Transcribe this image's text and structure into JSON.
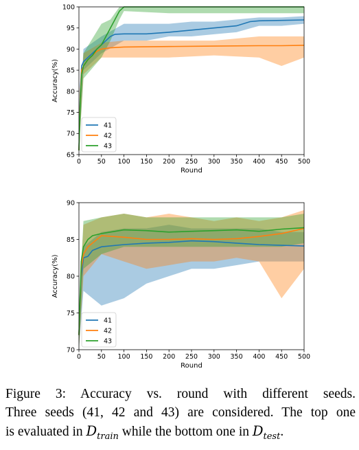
{
  "chart_data": [
    {
      "type": "line",
      "xlabel": "Round",
      "ylabel": "Accuracy(%)",
      "xlim": [
        0,
        500
      ],
      "ylim": [
        65,
        100
      ],
      "x_ticks": [
        "0",
        "50",
        "100",
        "150",
        "200",
        "250",
        "300",
        "350",
        "400",
        "450",
        "500"
      ],
      "y_ticks": [
        "65",
        "70",
        "75",
        "80",
        "85",
        "90",
        "95",
        "100"
      ],
      "legend": "bottom-left",
      "grid": false,
      "series": [
        {
          "name": "41",
          "color": "#1f77b4",
          "points": [
            [
              0,
              66
            ],
            [
              3,
              80
            ],
            [
              6,
              86
            ],
            [
              10,
              87
            ],
            [
              20,
              88
            ],
            [
              30,
              89
            ],
            [
              40,
              90
            ],
            [
              50,
              91
            ],
            [
              60,
              92
            ],
            [
              70,
              93
            ],
            [
              80,
              93.5
            ],
            [
              100,
              93.6
            ],
            [
              150,
              93.6
            ],
            [
              200,
              94
            ],
            [
              250,
              94.5
            ],
            [
              300,
              95
            ],
            [
              350,
              95.5
            ],
            [
              380,
              96.5
            ],
            [
              400,
              96.7
            ],
            [
              450,
              96.8
            ],
            [
              500,
              96.9
            ]
          ],
          "band_low": [
            [
              0,
              66
            ],
            [
              10,
              85
            ],
            [
              50,
              89
            ],
            [
              100,
              92
            ],
            [
              150,
              92
            ],
            [
              200,
              93
            ],
            [
              250,
              93
            ],
            [
              300,
              93.5
            ],
            [
              350,
              94
            ],
            [
              400,
              95.5
            ],
            [
              450,
              95.5
            ],
            [
              500,
              96
            ]
          ],
          "band_high": [
            [
              0,
              70
            ],
            [
              10,
              90
            ],
            [
              50,
              93
            ],
            [
              100,
              96
            ],
            [
              150,
              96
            ],
            [
              200,
              96
            ],
            [
              250,
              96.5
            ],
            [
              300,
              96.5
            ],
            [
              350,
              97
            ],
            [
              400,
              97.5
            ],
            [
              450,
              97.5
            ],
            [
              500,
              97.8
            ]
          ]
        },
        {
          "name": "42",
          "color": "#ff7f0e",
          "points": [
            [
              0,
              66
            ],
            [
              3,
              79
            ],
            [
              6,
              85
            ],
            [
              10,
              86
            ],
            [
              20,
              87.5
            ],
            [
              30,
              88.5
            ],
            [
              40,
              89.5
            ],
            [
              50,
              90
            ],
            [
              70,
              90.3
            ],
            [
              100,
              90.5
            ],
            [
              200,
              90.6
            ],
            [
              300,
              90.7
            ],
            [
              400,
              90.8
            ],
            [
              450,
              90.8
            ],
            [
              500,
              90.9
            ]
          ],
          "band_low": [
            [
              0,
              66
            ],
            [
              10,
              84
            ],
            [
              50,
              88
            ],
            [
              100,
              88
            ],
            [
              200,
              88
            ],
            [
              300,
              88.5
            ],
            [
              400,
              88
            ],
            [
              450,
              86
            ],
            [
              500,
              88
            ]
          ],
          "band_high": [
            [
              0,
              70
            ],
            [
              10,
              89
            ],
            [
              50,
              91.5
            ],
            [
              100,
              92
            ],
            [
              200,
              92
            ],
            [
              300,
              92
            ],
            [
              400,
              93
            ],
            [
              450,
              93
            ],
            [
              500,
              93
            ]
          ]
        },
        {
          "name": "43",
          "color": "#2ca02c",
          "points": [
            [
              0,
              66
            ],
            [
              3,
              78
            ],
            [
              6,
              84
            ],
            [
              10,
              86
            ],
            [
              20,
              87.5
            ],
            [
              30,
              88.5
            ],
            [
              40,
              90
            ],
            [
              50,
              91
            ],
            [
              60,
              93
            ],
            [
              70,
              95
            ],
            [
              80,
              97
            ],
            [
              90,
              99
            ],
            [
              100,
              100
            ],
            [
              200,
              100
            ],
            [
              300,
              100
            ],
            [
              400,
              100
            ],
            [
              500,
              100
            ]
          ],
          "band_low": [
            [
              0,
              66
            ],
            [
              10,
              83
            ],
            [
              50,
              88
            ],
            [
              70,
              92
            ],
            [
              90,
              97
            ],
            [
              100,
              99
            ],
            [
              200,
              98.5
            ],
            [
              300,
              98.5
            ],
            [
              400,
              98.5
            ],
            [
              500,
              98.5
            ]
          ],
          "band_high": [
            [
              0,
              70
            ],
            [
              10,
              89
            ],
            [
              50,
              96
            ],
            [
              70,
              97
            ],
            [
              90,
              100
            ],
            [
              500,
              100
            ]
          ]
        }
      ]
    },
    {
      "type": "line",
      "xlabel": "Round",
      "ylabel": "Accuracy(%)",
      "xlim": [
        0,
        500
      ],
      "ylim": [
        70,
        90
      ],
      "x_ticks": [
        "0",
        "50",
        "100",
        "150",
        "200",
        "250",
        "300",
        "350",
        "400",
        "450",
        "500"
      ],
      "y_ticks": [
        "70",
        "75",
        "80",
        "85",
        "90"
      ],
      "legend": "bottom-left",
      "grid": false,
      "series": [
        {
          "name": "41",
          "color": "#1f77b4",
          "points": [
            [
              0,
              72
            ],
            [
              5,
              80
            ],
            [
              10,
              82.5
            ],
            [
              20,
              82.7
            ],
            [
              30,
              83.5
            ],
            [
              50,
              84
            ],
            [
              100,
              84.3
            ],
            [
              150,
              84.5
            ],
            [
              200,
              84.6
            ],
            [
              250,
              84.8
            ],
            [
              300,
              84.7
            ],
            [
              350,
              84.5
            ],
            [
              400,
              84.3
            ],
            [
              450,
              84.2
            ],
            [
              500,
              84.1
            ]
          ],
          "band_low": [
            [
              0,
              70
            ],
            [
              10,
              78
            ],
            [
              50,
              76
            ],
            [
              100,
              77
            ],
            [
              150,
              79
            ],
            [
              200,
              80
            ],
            [
              250,
              81
            ],
            [
              300,
              81
            ],
            [
              350,
              81.5
            ],
            [
              400,
              82
            ],
            [
              450,
              82
            ],
            [
              500,
              82
            ]
          ],
          "band_high": [
            [
              0,
              75
            ],
            [
              10,
              84
            ],
            [
              50,
              86
            ],
            [
              100,
              86.5
            ],
            [
              150,
              86.5
            ],
            [
              200,
              87
            ],
            [
              250,
              86.5
            ],
            [
              300,
              86.5
            ],
            [
              350,
              86.5
            ],
            [
              400,
              86.5
            ],
            [
              450,
              86
            ],
            [
              500,
              86
            ]
          ]
        },
        {
          "name": "42",
          "color": "#ff7f0e",
          "points": [
            [
              0,
              72
            ],
            [
              5,
              81
            ],
            [
              10,
              83
            ],
            [
              20,
              84
            ],
            [
              30,
              84.5
            ],
            [
              50,
              85.5
            ],
            [
              100,
              85.3
            ],
            [
              150,
              85
            ],
            [
              200,
              85
            ],
            [
              250,
              85.1
            ],
            [
              300,
              85
            ],
            [
              350,
              85.1
            ],
            [
              400,
              85.4
            ],
            [
              450,
              85.8
            ],
            [
              500,
              86.5
            ]
          ],
          "band_low": [
            [
              0,
              70
            ],
            [
              10,
              80
            ],
            [
              50,
              83
            ],
            [
              100,
              82
            ],
            [
              150,
              81
            ],
            [
              200,
              81.5
            ],
            [
              250,
              82
            ],
            [
              300,
              82
            ],
            [
              350,
              82.5
            ],
            [
              400,
              82
            ],
            [
              450,
              77
            ],
            [
              500,
              81
            ]
          ],
          "band_high": [
            [
              0,
              75
            ],
            [
              10,
              87
            ],
            [
              50,
              88
            ],
            [
              100,
              88.5
            ],
            [
              150,
              88
            ],
            [
              200,
              88.5
            ],
            [
              250,
              88
            ],
            [
              300,
              87.5
            ],
            [
              350,
              88
            ],
            [
              400,
              87.5
            ],
            [
              450,
              88
            ],
            [
              500,
              89
            ]
          ]
        },
        {
          "name": "43",
          "color": "#2ca02c",
          "points": [
            [
              0,
              72
            ],
            [
              5,
              82
            ],
            [
              10,
              84
            ],
            [
              20,
              85
            ],
            [
              30,
              85.5
            ],
            [
              50,
              85.8
            ],
            [
              100,
              86.3
            ],
            [
              150,
              86.2
            ],
            [
              200,
              86
            ],
            [
              250,
              86.1
            ],
            [
              300,
              86.2
            ],
            [
              350,
              86.3
            ],
            [
              400,
              86.1
            ],
            [
              450,
              86.4
            ],
            [
              500,
              86.6
            ]
          ],
          "band_low": [
            [
              0,
              70
            ],
            [
              10,
              81
            ],
            [
              50,
              83
            ],
            [
              100,
              84
            ],
            [
              150,
              84
            ],
            [
              200,
              84
            ],
            [
              250,
              84
            ],
            [
              300,
              84
            ],
            [
              350,
              84
            ],
            [
              400,
              84
            ],
            [
              450,
              84
            ],
            [
              500,
              84.5
            ]
          ],
          "band_high": [
            [
              0,
              76
            ],
            [
              10,
              87.5
            ],
            [
              50,
              88
            ],
            [
              100,
              88.5
            ],
            [
              150,
              88
            ],
            [
              200,
              88
            ],
            [
              250,
              88
            ],
            [
              300,
              88
            ],
            [
              350,
              88
            ],
            [
              400,
              88
            ],
            [
              450,
              88
            ],
            [
              500,
              88.5
            ]
          ]
        }
      ]
    }
  ],
  "caption": {
    "line1": "Figure 3: Accuracy vs.  round with different seeds.",
    "line2": "Three seeds (41, 42 and 43) are considered. The top one",
    "line3_a": "is evaluated in ",
    "line3_m1": "D",
    "line3_m1_sub": "train",
    "line3_b": " while the bottom one in ",
    "line3_m2": "D",
    "line3_m2_sub": "test",
    "line3_c": "."
  }
}
